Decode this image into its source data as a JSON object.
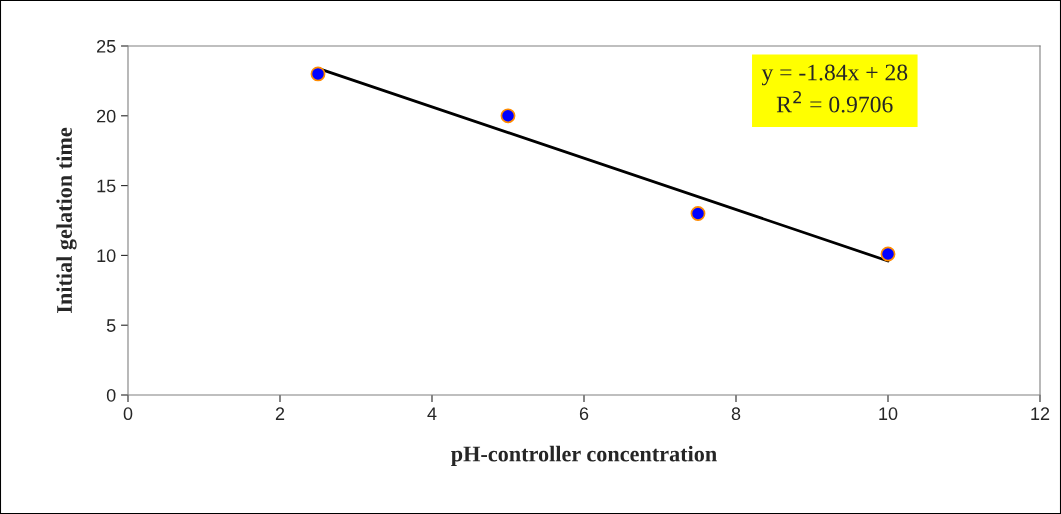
{
  "chart_data": {
    "type": "scatter",
    "xlabel": "pH-controller concentration",
    "ylabel": "Initial gelation time",
    "series": [
      {
        "color": "#0000ff",
        "marker": "circle",
        "x": [
          2.5,
          5,
          7.5,
          10
        ],
        "values": [
          23,
          20,
          13,
          10.1
        ]
      },
      {
        "type": "line",
        "color": "#000000",
        "marker": "none",
        "line_style": "solid",
        "x": [
          2.5,
          10
        ],
        "values": [
          23.4,
          9.6
        ]
      }
    ],
    "xlim": [
      0,
      12
    ],
    "xticks": [
      0,
      2,
      4,
      6,
      8,
      10,
      12
    ],
    "ylim": [
      0,
      25
    ],
    "yticks": [
      0,
      5,
      10,
      15,
      20,
      25
    ],
    "grid": false,
    "annotations": [
      "y = -1.84x + 28\nR$^{2}$ = 0.9706"
    ]
  }
}
